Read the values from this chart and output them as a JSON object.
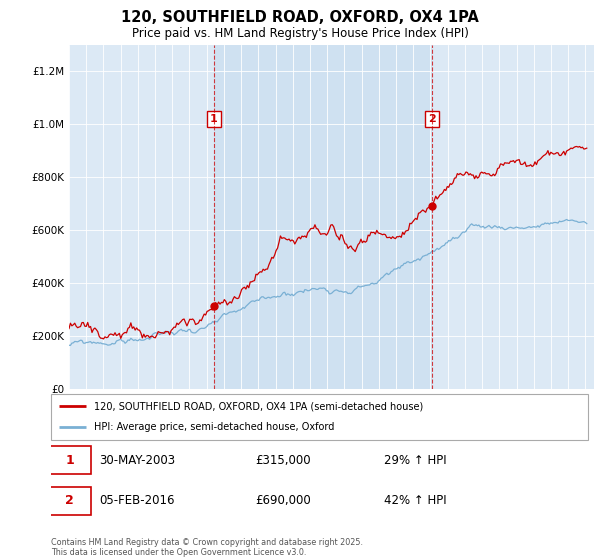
{
  "title": "120, SOUTHFIELD ROAD, OXFORD, OX4 1PA",
  "subtitle": "Price paid vs. HM Land Registry's House Price Index (HPI)",
  "red_label": "120, SOUTHFIELD ROAD, OXFORD, OX4 1PA (semi-detached house)",
  "blue_label": "HPI: Average price, semi-detached house, Oxford",
  "annotation1_date": "30-MAY-2003",
  "annotation1_price": "£315,000",
  "annotation1_hpi": "29% ↑ HPI",
  "annotation1_year": 2003.42,
  "annotation1_value": 315000,
  "annotation2_date": "05-FEB-2016",
  "annotation2_price": "£690,000",
  "annotation2_hpi": "42% ↑ HPI",
  "annotation2_year": 2016.09,
  "annotation2_value": 690000,
  "footer": "Contains HM Land Registry data © Crown copyright and database right 2025.\nThis data is licensed under the Open Government Licence v3.0.",
  "ylim_max": 1300000,
  "background_color": "#dce9f5",
  "shade_color": "#c5dcef",
  "red_color": "#cc0000",
  "blue_color": "#7ab0d4",
  "fig_width": 6.0,
  "fig_height": 5.6
}
